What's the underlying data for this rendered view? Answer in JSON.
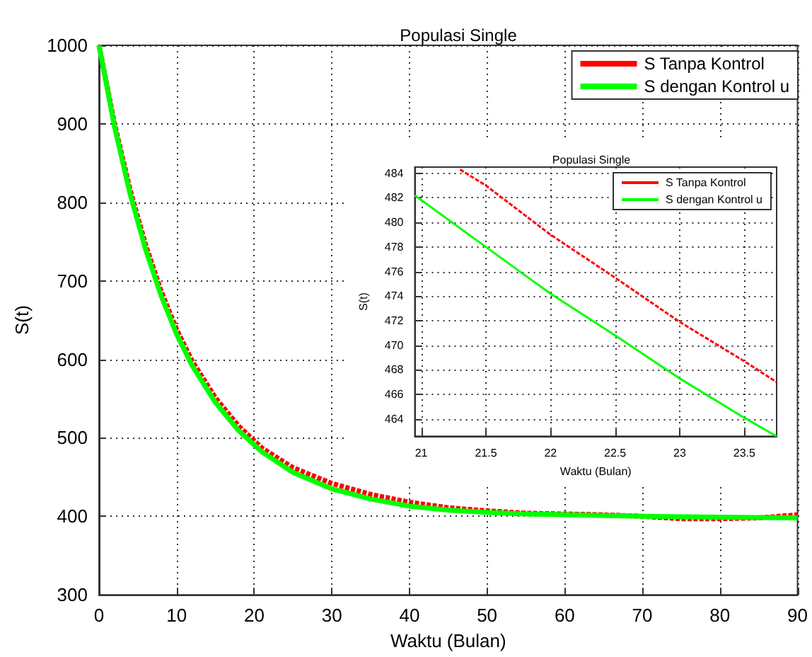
{
  "chart_data": [
    {
      "type": "line",
      "title": "Populasi Single",
      "xlabel": "Waktu (Bulan)",
      "ylabel": "S(t)",
      "xlim": [
        0,
        90
      ],
      "ylim": [
        300,
        1000
      ],
      "xticks": [
        0,
        10,
        20,
        30,
        40,
        50,
        60,
        70,
        80,
        90
      ],
      "yticks": [
        300,
        400,
        500,
        600,
        700,
        800,
        900,
        1000
      ],
      "grid": true,
      "legend": "top right",
      "marker": "none",
      "series": [
        {
          "name": "S Tanpa Kontrol",
          "color": "#ff0000",
          "line_style": "dashed",
          "x": [
            0,
            2,
            4,
            6,
            8,
            10,
            12,
            15,
            18,
            21,
            25,
            30,
            35,
            40,
            45,
            50,
            55,
            60,
            65,
            70,
            75,
            80,
            85,
            90
          ],
          "values": [
            1000,
            900,
            816,
            746,
            687,
            638,
            598,
            551,
            515,
            487,
            462,
            442,
            428,
            418,
            411,
            407,
            404,
            403,
            402,
            400,
            397,
            397,
            398,
            402
          ]
        },
        {
          "name": "S dengan Kontrol u",
          "color": "#00ff00",
          "line_style": "solid",
          "x": [
            0,
            2,
            4,
            6,
            8,
            10,
            12,
            15,
            18,
            21,
            25,
            30,
            35,
            40,
            45,
            50,
            55,
            60,
            70,
            80,
            90
          ],
          "values": [
            1000,
            896,
            811,
            740,
            681,
            632,
            592,
            545,
            509,
            482,
            456,
            435,
            422,
            413,
            408,
            405,
            403,
            402,
            400,
            399,
            398
          ]
        }
      ]
    },
    {
      "type": "line",
      "title": "Populasi Single",
      "xlabel": "Waktu (Bulan)",
      "ylabel": "S(t)",
      "xlim": [
        20.95,
        23.75
      ],
      "ylim": [
        462.6,
        484.5
      ],
      "xticks": [
        21,
        21.5,
        22,
        22.5,
        23,
        23.5
      ],
      "yticks": [
        464,
        466,
        468,
        470,
        472,
        474,
        476,
        478,
        480,
        482,
        484
      ],
      "grid": true,
      "legend": "top right",
      "marker": "none",
      "series": [
        {
          "name": "S Tanpa Kontrol",
          "color": "#ff0000",
          "line_style": "dashed",
          "x": [
            21.3,
            21.5,
            22,
            22.5,
            23,
            23.5,
            23.75
          ],
          "values": [
            484.3,
            483,
            479,
            475.5,
            471.9,
            468.7,
            467
          ]
        },
        {
          "name": "S dengan Kontrol u",
          "color": "#00ff00",
          "line_style": "solid",
          "x": [
            20.95,
            21.5,
            22,
            22.5,
            23,
            23.5,
            23.75
          ],
          "values": [
            482.2,
            478,
            474.2,
            470.8,
            467.3,
            464.1,
            462.6
          ]
        }
      ]
    }
  ]
}
